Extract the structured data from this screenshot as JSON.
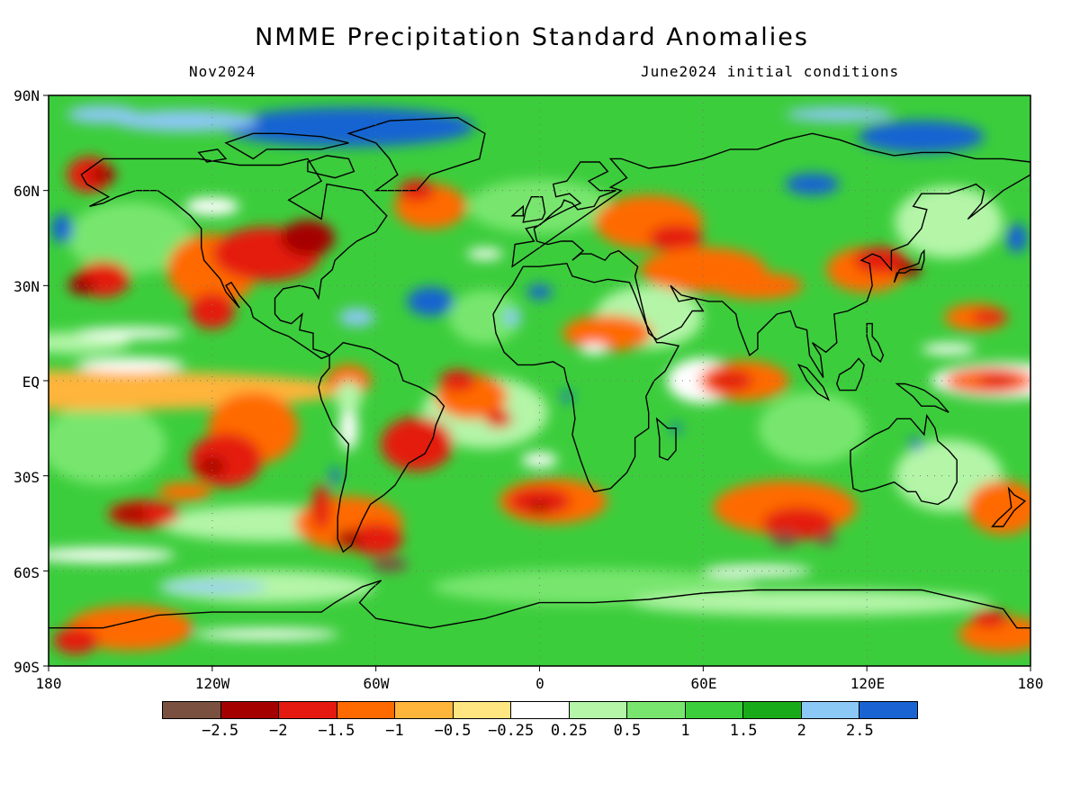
{
  "title": "NMME Precipitation Standard Anomalies",
  "subtitle_left": "Nov2024",
  "subtitle_right": "June2024 initial conditions",
  "lat_labels": [
    "90N",
    "60N",
    "30N",
    "EQ",
    "30S",
    "60S",
    "90S"
  ],
  "lon_labels": [
    "180",
    "120W",
    "60W",
    "0",
    "60E",
    "120E",
    "180"
  ],
  "colorbar": {
    "colors": [
      "#7a5040",
      "#a50000",
      "#e41a10",
      "#ff6a00",
      "#ffb43a",
      "#ffe680",
      "#ffffff",
      "#b4f5a8",
      "#78e66e",
      "#3ccd3c",
      "#19aa19",
      "#8cc8f5",
      "#1964d2"
    ],
    "labels": [
      "-2.5",
      "-2",
      "-1.5",
      "-1",
      "-0.5",
      "-0.25",
      "0.25",
      "0.5",
      "1",
      "1.5",
      "2",
      "2.5"
    ]
  }
}
